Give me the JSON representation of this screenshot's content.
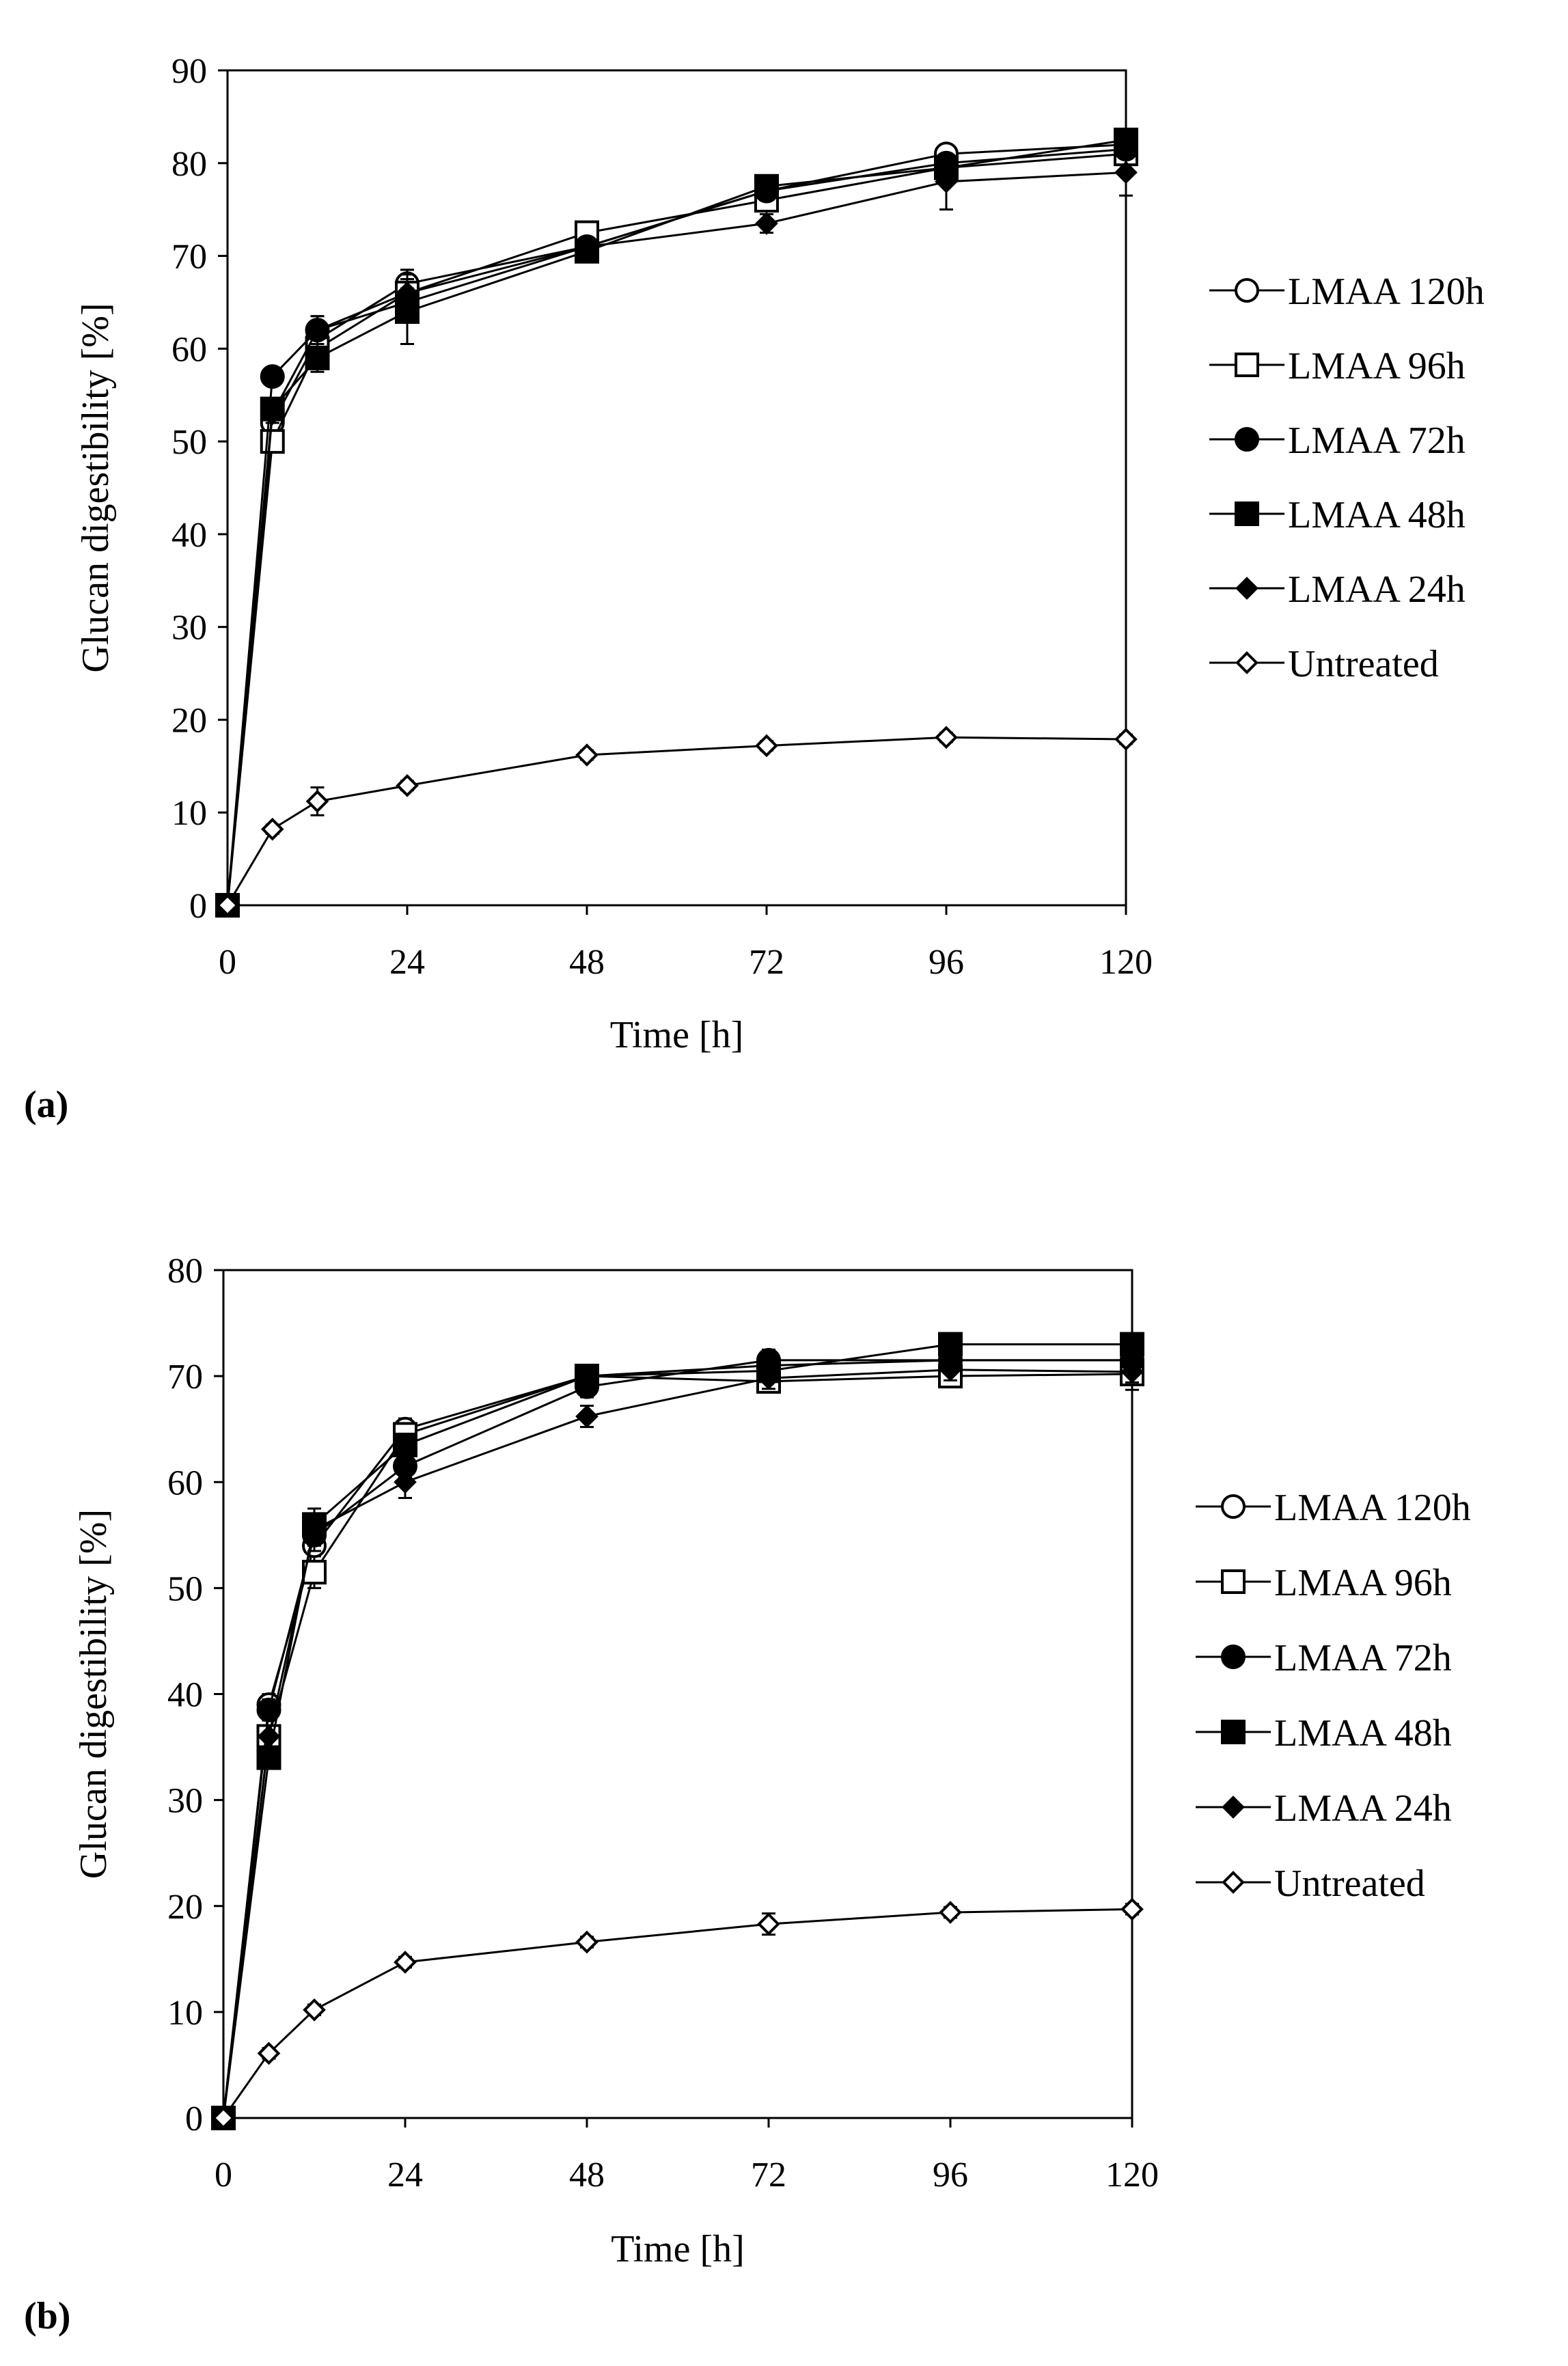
{
  "chart_data": [
    {
      "type": "line",
      "panel_label": "(a)",
      "xlabel": "Time [h]",
      "ylabel": "Glucan digestibility [%]",
      "xlim": [
        0,
        120
      ],
      "ylim": [
        0,
        90
      ],
      "xticks": [
        0,
        24,
        48,
        72,
        96,
        120
      ],
      "yticks": [
        0,
        10,
        20,
        30,
        40,
        50,
        60,
        70,
        80,
        90
      ],
      "grid": false,
      "legend_position": "right",
      "series": [
        {
          "name": "LMAA 120h",
          "marker": "circle-open",
          "x": [
            0,
            6,
            12,
            24,
            48,
            72,
            96,
            120
          ],
          "y": [
            0,
            52,
            61,
            67,
            71,
            77,
            81,
            82
          ],
          "err": [
            0,
            1,
            1.5,
            1.5,
            1,
            1,
            1,
            1
          ]
        },
        {
          "name": "LMAA 96h",
          "marker": "square-open",
          "x": [
            0,
            6,
            12,
            24,
            48,
            72,
            96,
            120
          ],
          "y": [
            0,
            50,
            60,
            66,
            72.5,
            76,
            79.5,
            81
          ],
          "err": [
            0,
            1,
            1.5,
            2,
            1,
            1,
            1,
            1
          ]
        },
        {
          "name": "LMAA 72h",
          "marker": "circle-filled",
          "x": [
            0,
            6,
            12,
            24,
            48,
            72,
            96,
            120
          ],
          "y": [
            0,
            57,
            62,
            65,
            71,
            77,
            80,
            81.5
          ],
          "err": [
            0,
            1,
            1.5,
            1.5,
            1,
            1,
            1,
            1
          ]
        },
        {
          "name": "LMAA 48h",
          "marker": "square-filled",
          "x": [
            0,
            6,
            12,
            24,
            48,
            72,
            96,
            120
          ],
          "y": [
            0,
            53.5,
            59,
            64,
            70.5,
            77.5,
            79.5,
            82.5
          ],
          "err": [
            0,
            1,
            1.5,
            3.5,
            1,
            1,
            1,
            1
          ]
        },
        {
          "name": "LMAA 24h",
          "marker": "diamond-filled",
          "x": [
            0,
            6,
            12,
            24,
            48,
            72,
            96,
            120
          ],
          "y": [
            0,
            53,
            62,
            66,
            71,
            73.5,
            78,
            79
          ],
          "err": [
            0,
            1,
            1.5,
            2.5,
            1,
            1,
            3,
            2.5
          ]
        },
        {
          "name": "Untreated",
          "marker": "diamond-open",
          "x": [
            0,
            6,
            12,
            24,
            48,
            72,
            96,
            120
          ],
          "y": [
            0,
            8.2,
            11.2,
            12.9,
            16.2,
            17.2,
            18.1,
            17.9
          ],
          "err": [
            0,
            0.5,
            1.5,
            0.5,
            0.5,
            0.5,
            0.5,
            0.5
          ]
        }
      ]
    },
    {
      "type": "line",
      "panel_label": "(b)",
      "xlabel": "Time [h]",
      "ylabel": "Glucan digestibility [%]",
      "xlim": [
        0,
        120
      ],
      "ylim": [
        0,
        80
      ],
      "xticks": [
        0,
        24,
        48,
        72,
        96,
        120
      ],
      "yticks": [
        0,
        10,
        20,
        30,
        40,
        50,
        60,
        70,
        80
      ],
      "grid": false,
      "legend_position": "right",
      "series": [
        {
          "name": "LMAA 120h",
          "marker": "circle-open",
          "x": [
            0,
            6,
            12,
            24,
            48,
            72,
            96,
            120
          ],
          "y": [
            0,
            39,
            54,
            65,
            70,
            71,
            71.5,
            71.5
          ],
          "err": [
            0,
            1,
            1.5,
            1,
            1,
            1,
            1,
            1
          ]
        },
        {
          "name": "LMAA 96h",
          "marker": "square-open",
          "x": [
            0,
            6,
            12,
            24,
            48,
            72,
            96,
            120
          ],
          "y": [
            0,
            36,
            51.5,
            64.5,
            70,
            69.5,
            70,
            70.2
          ],
          "err": [
            0,
            1,
            1.5,
            1,
            1,
            1,
            1,
            1.5
          ]
        },
        {
          "name": "LMAA 72h",
          "marker": "circle-filled",
          "x": [
            0,
            6,
            12,
            24,
            48,
            72,
            96,
            120
          ],
          "y": [
            0,
            38.5,
            55,
            61.5,
            69,
            71.5,
            71.5,
            71.5
          ],
          "err": [
            0,
            1,
            1.5,
            1,
            1,
            1,
            1,
            1
          ]
        },
        {
          "name": "LMAA 48h",
          "marker": "square-filled",
          "x": [
            0,
            6,
            12,
            24,
            48,
            72,
            96,
            120
          ],
          "y": [
            0,
            34,
            56,
            63.5,
            70,
            70.5,
            73,
            73
          ],
          "err": [
            0,
            1,
            1.5,
            1,
            1,
            1,
            1,
            1
          ]
        },
        {
          "name": "LMAA 24h",
          "marker": "diamond-filled",
          "x": [
            0,
            6,
            12,
            24,
            48,
            72,
            96,
            120
          ],
          "y": [
            0,
            36,
            55.5,
            60,
            66.2,
            69.8,
            70.6,
            70.4
          ],
          "err": [
            0,
            1,
            1.5,
            1.5,
            1,
            1,
            1,
            1
          ]
        },
        {
          "name": "Untreated",
          "marker": "diamond-open",
          "x": [
            0,
            6,
            12,
            24,
            48,
            72,
            96,
            120
          ],
          "y": [
            0,
            6.1,
            10.2,
            14.7,
            16.6,
            18.3,
            19.4,
            19.7
          ],
          "err": [
            0,
            0.5,
            0.5,
            0.5,
            0.5,
            1,
            0.5,
            0.5
          ]
        }
      ]
    }
  ]
}
